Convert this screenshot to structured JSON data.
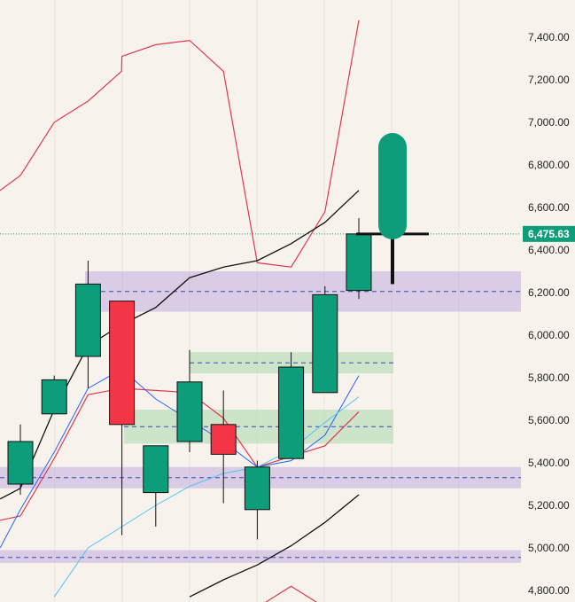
{
  "chart_data": {
    "type": "candlestick",
    "ylim": [
      4770,
      7480
    ],
    "y_ticks": [
      "7,400.00",
      "7,200.00",
      "7,000.00",
      "6,800.00",
      "6,600.00",
      "6,400.00",
      "6,200.00",
      "6,000.00",
      "5,800.00",
      "5,600.00",
      "5,400.00",
      "5,200.00",
      "5,000.00",
      "4,800.00"
    ],
    "y_tick_values": [
      7400,
      7200,
      7000,
      6800,
      6600,
      6400,
      6200,
      6000,
      5800,
      5600,
      5400,
      5200,
      5000,
      4800
    ],
    "last_price": {
      "value": 6475.63,
      "label": "6,475.63",
      "color": "#0e9d7b"
    },
    "colors": {
      "up": "#0e9d7b",
      "down": "#f23645",
      "zone_purple": "#b39ddb",
      "zone_green": "#a5d6a7",
      "outer_band": "#e0394f",
      "middle_line": "#111111",
      "blue_line": "#2962ff",
      "cyan_line": "#4fc3f7",
      "red_line": "#e0394f"
    },
    "candles": [
      {
        "open": 5300,
        "high": 5580,
        "low": 5250,
        "close": 5500
      },
      {
        "open": 5630,
        "high": 5810,
        "low": 5630,
        "close": 5790
      },
      {
        "open": 5900,
        "high": 6350,
        "low": 5750,
        "close": 6240
      },
      {
        "open": 6160,
        "high": 6160,
        "low": 5060,
        "close": 5580
      },
      {
        "open": 5260,
        "high": 5480,
        "low": 5100,
        "close": 5480
      },
      {
        "open": 5500,
        "high": 5930,
        "low": 5450,
        "close": 5780
      },
      {
        "open": 5580,
        "high": 5740,
        "low": 5210,
        "close": 5440
      },
      {
        "open": 5180,
        "high": 5410,
        "low": 5040,
        "close": 5380
      },
      {
        "open": 5420,
        "high": 5920,
        "low": 5420,
        "close": 5850
      },
      {
        "open": 5730,
        "high": 6230,
        "low": 5730,
        "close": 6190
      },
      {
        "open": 6210,
        "high": 6550,
        "low": 6170,
        "close": 6475.63
      }
    ],
    "projection": {
      "top": 6950,
      "bottom": 6450,
      "wick_low": 6240
    },
    "zones": [
      {
        "type": "purple",
        "top": 6300,
        "bottom": 6110,
        "mid": 6205
      },
      {
        "type": "purple",
        "top": 5380,
        "bottom": 5280,
        "mid": 5330
      },
      {
        "type": "purple",
        "top": 4990,
        "bottom": 4930,
        "mid": 4955
      },
      {
        "type": "green",
        "top": 5920,
        "bottom": 5820,
        "mid": 5870
      },
      {
        "type": "green",
        "top": 5650,
        "bottom": 5490,
        "mid": 5570
      }
    ],
    "lines": {
      "outer_band": [
        {
          "i": -0.6,
          "v": 6680
        },
        {
          "i": 0,
          "v": 6750
        },
        {
          "i": 1,
          "v": 7000
        },
        {
          "i": 2,
          "v": 7100
        },
        {
          "i": 2.99,
          "v": 7240
        },
        {
          "i": 3,
          "v": 7310
        },
        {
          "i": 4,
          "v": 7365
        },
        {
          "i": 5,
          "v": 7385
        },
        {
          "i": 6,
          "v": 7240
        },
        {
          "i": 7,
          "v": 6340
        },
        {
          "i": 8,
          "v": 6320
        },
        {
          "i": 9,
          "v": 6580
        },
        {
          "i": 10,
          "v": 7480
        }
      ],
      "outer_band_low": [
        {
          "i": 7,
          "v": 4720
        },
        {
          "i": 8,
          "v": 4820
        },
        {
          "i": 9,
          "v": 4720
        }
      ],
      "red_inner": [
        {
          "i": -0.6,
          "v": 5130
        },
        {
          "i": 0,
          "v": 5150
        },
        {
          "i": 1,
          "v": 5420
        },
        {
          "i": 2,
          "v": 5720
        },
        {
          "i": 3,
          "v": 5750
        },
        {
          "i": 4,
          "v": 5740
        },
        {
          "i": 5,
          "v": 5730
        },
        {
          "i": 6,
          "v": 5610
        },
        {
          "i": 7,
          "v": 5380
        },
        {
          "i": 8,
          "v": 5430
        },
        {
          "i": 9,
          "v": 5480
        },
        {
          "i": 10,
          "v": 5640
        }
      ],
      "blue": [
        {
          "i": -0.6,
          "v": 5000
        },
        {
          "i": 0,
          "v": 5180
        },
        {
          "i": 1,
          "v": 5450
        },
        {
          "i": 2,
          "v": 5750
        },
        {
          "i": 3,
          "v": 5840
        },
        {
          "i": 4,
          "v": 5700
        },
        {
          "i": 5,
          "v": 5600
        },
        {
          "i": 6,
          "v": 5500
        },
        {
          "i": 7,
          "v": 5380
        },
        {
          "i": 8,
          "v": 5410
        },
        {
          "i": 9,
          "v": 5530
        },
        {
          "i": 10,
          "v": 5810
        }
      ],
      "cyan": [
        {
          "i": 1,
          "v": 4770
        },
        {
          "i": 2,
          "v": 5000
        },
        {
          "i": 3,
          "v": 5100
        },
        {
          "i": 4,
          "v": 5200
        },
        {
          "i": 5,
          "v": 5290
        },
        {
          "i": 6,
          "v": 5350
        },
        {
          "i": 7,
          "v": 5380
        },
        {
          "i": 8,
          "v": 5460
        },
        {
          "i": 9,
          "v": 5590
        },
        {
          "i": 10,
          "v": 5710
        }
      ],
      "middle": [
        {
          "i": -0.6,
          "v": 5230
        },
        {
          "i": 0,
          "v": 5280
        },
        {
          "i": 1,
          "v": 5650
        },
        {
          "i": 2,
          "v": 5950
        },
        {
          "i": 3,
          "v": 6050
        },
        {
          "i": 4,
          "v": 6130
        },
        {
          "i": 5,
          "v": 6270
        },
        {
          "i": 6,
          "v": 6320
        },
        {
          "i": 7,
          "v": 6350
        },
        {
          "i": 8,
          "v": 6430
        },
        {
          "i": 9,
          "v": 6530
        },
        {
          "i": 10,
          "v": 6680
        }
      ],
      "lower": [
        {
          "i": 5,
          "v": 4770
        },
        {
          "i": 6,
          "v": 4850
        },
        {
          "i": 7,
          "v": 4920
        },
        {
          "i": 8,
          "v": 5010
        },
        {
          "i": 9,
          "v": 5120
        },
        {
          "i": 10,
          "v": 5250
        }
      ]
    }
  }
}
